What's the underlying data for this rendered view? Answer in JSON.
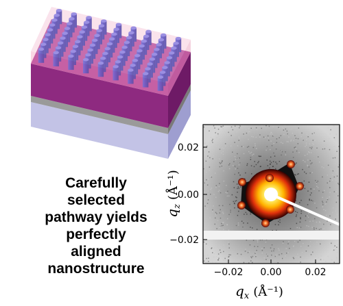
{
  "caption_lines": [
    "Carefully",
    "selected",
    "pathway yields",
    "perfectly",
    "aligned",
    "nanostructure"
  ],
  "plot": {
    "x_ticks": [
      "−0.02",
      "0.00",
      "0.02"
    ],
    "y_ticks": [
      "0.02",
      "0.00",
      "−0.02"
    ],
    "x_label": {
      "symbol": "q",
      "sub": "x",
      "unit": "(Å⁻¹)"
    },
    "y_label": {
      "symbol": "q",
      "sub": "z",
      "unit": "(Å⁻¹)"
    }
  },
  "colors": {
    "film": "#8a1f7a",
    "cylinders": "#3a4fd0",
    "substrate": "#b8b8de",
    "scatter_core": "#ffd21a"
  }
}
